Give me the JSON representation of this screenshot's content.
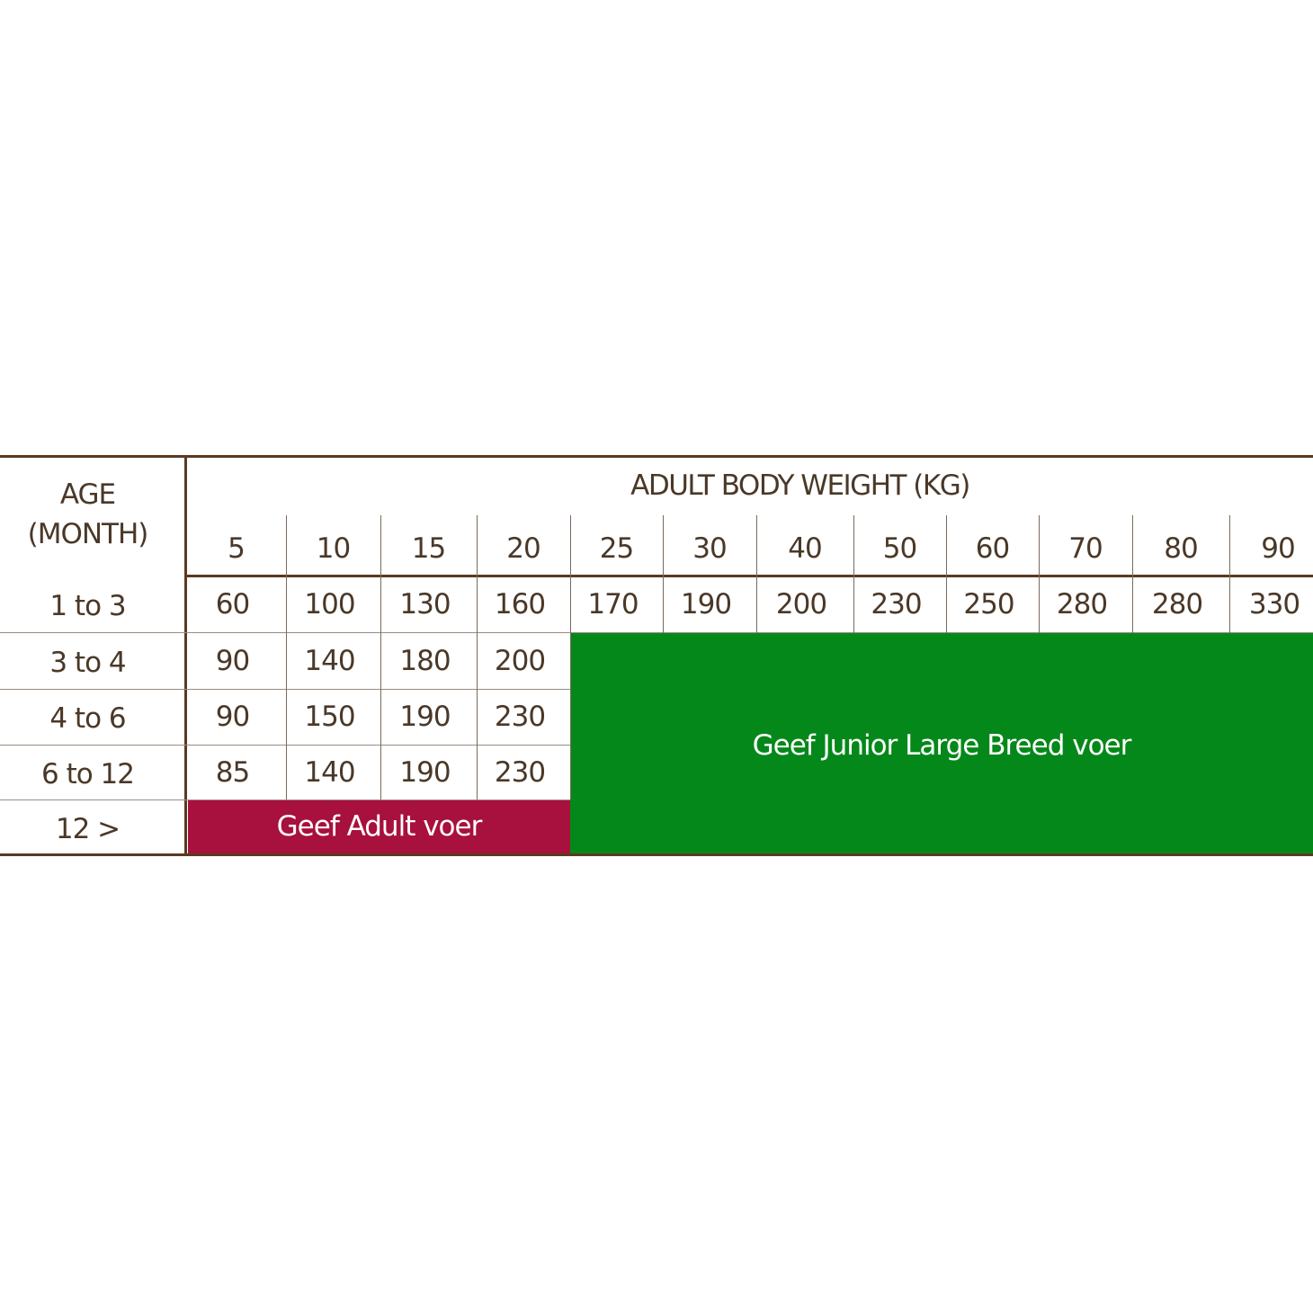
{
  "chart_data": {
    "type": "table",
    "row_header": [
      "AGE",
      "(MONTH)"
    ],
    "column_group_header": "ADULT BODY WEIGHT (KG)",
    "columns": [
      "5",
      "10",
      "15",
      "20",
      "25",
      "30",
      "40",
      "50",
      "60",
      "70",
      "80",
      "90"
    ],
    "rows": [
      {
        "label": "1 to 3",
        "values": [
          "60",
          "100",
          "130",
          "160",
          "170",
          "190",
          "200",
          "230",
          "250",
          "280",
          "280",
          "330"
        ]
      },
      {
        "label": "3 to 4",
        "values": [
          "90",
          "140",
          "180",
          "200"
        ]
      },
      {
        "label": "4 to 6",
        "values": [
          "90",
          "150",
          "190",
          "230"
        ]
      },
      {
        "label": "6 to 12",
        "values": [
          "85",
          "140",
          "190",
          "230"
        ]
      },
      {
        "label": "12 >",
        "values": []
      }
    ],
    "bands": {
      "adult": {
        "label": "Geef Adult voer",
        "color": "#a8103e"
      },
      "junior": {
        "label": "Geef Junior Large Breed voer",
        "color": "#05881a"
      }
    }
  }
}
